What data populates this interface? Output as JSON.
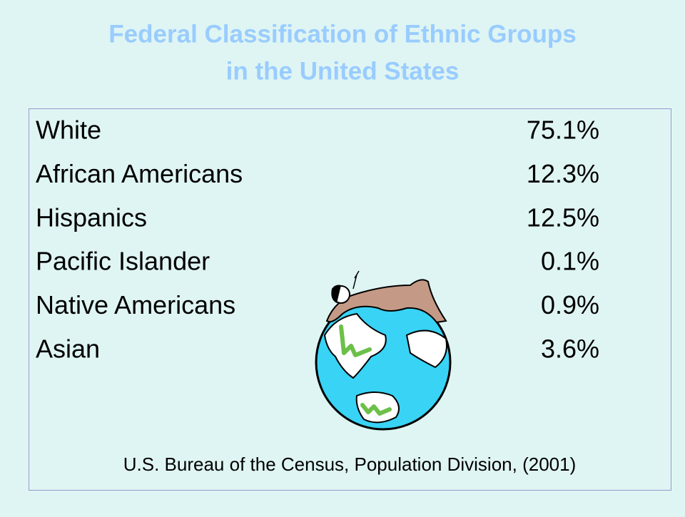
{
  "slide": {
    "title_lines": [
      "Federal Classification of Ethnic Groups",
      "in the United States"
    ],
    "rows": [
      [
        "White",
        "75.1%"
      ],
      [
        "African Americans",
        "12.3%"
      ],
      [
        "Hispanics",
        "12.5%"
      ],
      [
        "Pacific Islander",
        "0.1%"
      ],
      [
        "Native Americans",
        "0.9%"
      ],
      [
        "Asian",
        "3.6%"
      ]
    ],
    "source": "U.S. Bureau of the Census, Population Division, (2001)"
  }
}
